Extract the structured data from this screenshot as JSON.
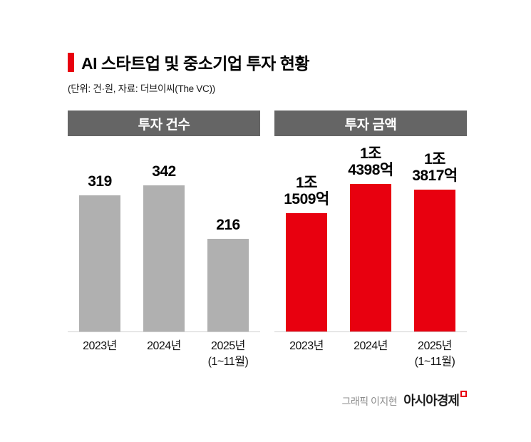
{
  "header": {
    "title": "AI 스타트업 및 중소기업 투자 현황",
    "subtitle": "(단위: 건·원, 자료: 더브이씨(The VC))"
  },
  "footer": {
    "credit": "그래픽 이지현",
    "brand": "아시아경제"
  },
  "colors": {
    "accent_red": "#e8000f",
    "bar_gray": "#b0b0b0",
    "chart_header_gray": "#656565"
  },
  "chart_data": [
    {
      "type": "bar",
      "title": "투자 건수",
      "unit": "건",
      "categories": [
        "2023년",
        "2024년",
        "2025년\n(1~11월)"
      ],
      "values": [
        319,
        342,
        216
      ],
      "value_labels": [
        "319",
        "342",
        "216"
      ],
      "ylim": [
        0,
        360
      ],
      "bar_color": "#b0b0b0",
      "grid": false,
      "legend": "none"
    },
    {
      "type": "bar",
      "title": "투자 금액",
      "unit": "억원",
      "categories": [
        "2023년",
        "2024년",
        "2025년\n(1~11월)"
      ],
      "values": [
        11509,
        14398,
        13817
      ],
      "value_labels": [
        "1조\n1509억",
        "1조\n4398억",
        "1조\n3817억"
      ],
      "ylim": [
        0,
        15000
      ],
      "bar_color": "#e8000f",
      "grid": false,
      "legend": "none"
    }
  ]
}
